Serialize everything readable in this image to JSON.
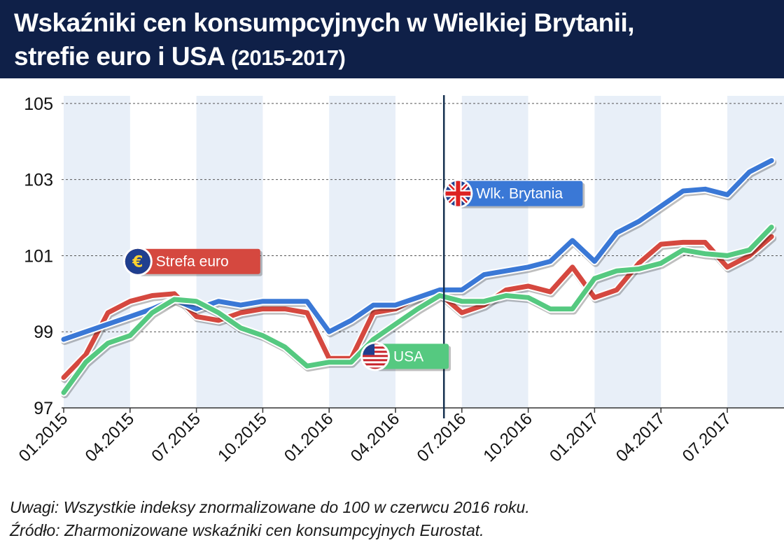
{
  "header": {
    "title_line1": "Wskaźniki cen konsumpcyjnych w Wielkiej Brytanii,",
    "title_line2": "strefie euro i USA",
    "title_years": "(2015-2017)"
  },
  "notes": {
    "line1": "Uwagi: Wszystkie indeksy znormalizowane do 100 w czerwcu 2016 roku.",
    "line2": "Źródło: Zharmonizowane wskaźniki cen konsumpcyjnych Eurostat."
  },
  "colors": {
    "uk": "#3a78d6",
    "euro": "#d5483f",
    "usa": "#55c980",
    "header_bg": "#0f2048",
    "marker": "#15304f",
    "band": "#e8eff8"
  },
  "chart_data": {
    "type": "line",
    "x": [
      "01.2015",
      "02.2015",
      "03.2015",
      "04.2015",
      "05.2015",
      "06.2015",
      "07.2015",
      "08.2015",
      "09.2015",
      "10.2015",
      "11.2015",
      "12.2015",
      "01.2016",
      "02.2016",
      "03.2016",
      "04.2016",
      "05.2016",
      "06.2016",
      "07.2016",
      "08.2016",
      "09.2016",
      "10.2016",
      "11.2016",
      "12.2016",
      "01.2017",
      "02.2017",
      "03.2017",
      "04.2017",
      "05.2017",
      "06.2017",
      "07.2017",
      "08.2017",
      "09.2017"
    ],
    "x_tick_labels": [
      "01.2015",
      "04.2015",
      "07.2015",
      "10.2015",
      "01.2016",
      "04.2016",
      "07.2016",
      "10.2016",
      "01.2017",
      "04.2017",
      "07.2017"
    ],
    "y_ticks": [
      97,
      99,
      101,
      103,
      105
    ],
    "ylim": [
      97,
      105.2
    ],
    "grid": "horizontal dashed",
    "vertical_marker": "06.2016",
    "series": [
      {
        "name": "Wlk. Brytania",
        "icon": "uk-flag-icon",
        "color_key": "uk",
        "values": [
          98.8,
          99.0,
          99.2,
          99.4,
          99.6,
          99.85,
          99.6,
          99.8,
          99.7,
          99.8,
          99.8,
          99.8,
          99.0,
          99.3,
          99.7,
          99.7,
          99.9,
          100.1,
          100.1,
          100.5,
          100.6,
          100.7,
          100.85,
          101.4,
          100.85,
          101.6,
          101.9,
          102.3,
          102.7,
          102.75,
          102.6,
          103.2,
          103.5
        ]
      },
      {
        "name": "Strefa euro",
        "icon": "euro-icon",
        "color_key": "euro",
        "values": [
          97.8,
          98.4,
          99.5,
          99.8,
          99.95,
          100.0,
          99.4,
          99.3,
          99.5,
          99.6,
          99.6,
          99.5,
          98.3,
          98.3,
          99.5,
          99.6,
          99.9,
          100.0,
          99.5,
          99.7,
          100.1,
          100.2,
          100.05,
          100.7,
          99.9,
          100.1,
          100.8,
          101.3,
          101.35,
          101.35,
          100.7,
          101.0,
          101.5
        ]
      },
      {
        "name": "USA",
        "icon": "us-flag-icon",
        "color_key": "usa",
        "values": [
          97.4,
          98.2,
          98.7,
          98.9,
          99.5,
          99.85,
          99.8,
          99.5,
          99.1,
          98.9,
          98.6,
          98.1,
          98.2,
          98.2,
          98.8,
          99.2,
          99.6,
          99.95,
          99.8,
          99.8,
          99.95,
          99.9,
          99.6,
          99.6,
          100.4,
          100.6,
          100.65,
          100.8,
          101.15,
          101.05,
          101.0,
          101.15,
          101.75
        ]
      }
    ]
  }
}
